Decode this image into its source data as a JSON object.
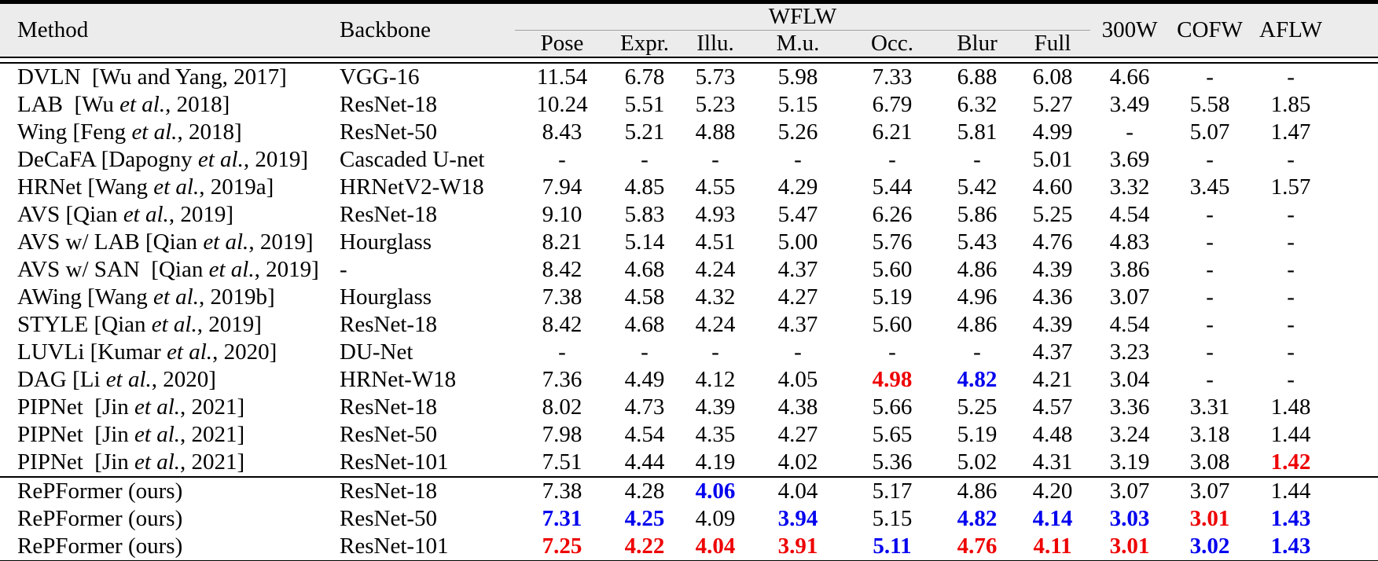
{
  "header": {
    "method": "Method",
    "backbone": "Backbone",
    "wflw_group": "WFLW",
    "wflw_subcols": [
      "Pose",
      "Expr.",
      "Illu.",
      "M.u.",
      "Occ.",
      "Blur",
      "Full"
    ],
    "datasets": [
      "300W",
      "COFW",
      "AFLW"
    ]
  },
  "colors": {
    "red": "#ee0000",
    "blue": "#0000ee",
    "header_bg": "#ececec",
    "wflw_rule": "#a3a3a3"
  },
  "rows": [
    {
      "method": [
        "DVLN  [Wu and Yang, 2017]",
        "",
        ""
      ],
      "backbone": "VGG-16",
      "sep": false,
      "cells": [
        [
          "11.54"
        ],
        [
          "6.78"
        ],
        [
          "5.73"
        ],
        [
          "5.98"
        ],
        [
          "7.33"
        ],
        [
          "6.88"
        ],
        [
          "6.08"
        ],
        [
          "4.66"
        ],
        [
          "-"
        ],
        [
          "-"
        ]
      ]
    },
    {
      "method": [
        "LAB  [Wu ",
        "et al.",
        ", 2018]"
      ],
      "backbone": "ResNet-18",
      "sep": false,
      "cells": [
        [
          "10.24"
        ],
        [
          "5.51"
        ],
        [
          "5.23"
        ],
        [
          "5.15"
        ],
        [
          "6.79"
        ],
        [
          "6.32"
        ],
        [
          "5.27"
        ],
        [
          "3.49"
        ],
        [
          "5.58"
        ],
        [
          "1.85"
        ]
      ]
    },
    {
      "method": [
        "Wing [Feng ",
        "et al.",
        ", 2018]"
      ],
      "backbone": "ResNet-50",
      "sep": false,
      "cells": [
        [
          "8.43"
        ],
        [
          "5.21"
        ],
        [
          "4.88"
        ],
        [
          "5.26"
        ],
        [
          "6.21"
        ],
        [
          "5.81"
        ],
        [
          "4.99"
        ],
        [
          "-"
        ],
        [
          "5.07"
        ],
        [
          "1.47"
        ]
      ]
    },
    {
      "method": [
        "DeCaFA [Dapogny ",
        "et al.",
        ", 2019]"
      ],
      "backbone": "Cascaded U-net",
      "sep": false,
      "cells": [
        [
          "-"
        ],
        [
          "-"
        ],
        [
          "-"
        ],
        [
          "-"
        ],
        [
          "-"
        ],
        [
          "-"
        ],
        [
          "5.01"
        ],
        [
          "3.69"
        ],
        [
          "-"
        ],
        [
          "-"
        ]
      ]
    },
    {
      "method": [
        "HRNet [Wang ",
        "et al.",
        ", 2019a]"
      ],
      "backbone": "HRNetV2-W18",
      "sep": false,
      "cells": [
        [
          "7.94"
        ],
        [
          "4.85"
        ],
        [
          "4.55"
        ],
        [
          "4.29"
        ],
        [
          "5.44"
        ],
        [
          "5.42"
        ],
        [
          "4.60"
        ],
        [
          "3.32"
        ],
        [
          "3.45"
        ],
        [
          "1.57"
        ]
      ]
    },
    {
      "method": [
        "AVS [Qian ",
        "et al.",
        ", 2019]"
      ],
      "backbone": "ResNet-18",
      "sep": false,
      "cells": [
        [
          "9.10"
        ],
        [
          "5.83"
        ],
        [
          "4.93"
        ],
        [
          "5.47"
        ],
        [
          "6.26"
        ],
        [
          "5.86"
        ],
        [
          "5.25"
        ],
        [
          "4.54"
        ],
        [
          "-"
        ],
        [
          "-"
        ]
      ]
    },
    {
      "method": [
        "AVS w/ LAB [Qian ",
        "et al.",
        ", 2019]"
      ],
      "backbone": "Hourglass",
      "sep": false,
      "cells": [
        [
          "8.21"
        ],
        [
          "5.14"
        ],
        [
          "4.51"
        ],
        [
          "5.00"
        ],
        [
          "5.76"
        ],
        [
          "5.43"
        ],
        [
          "4.76"
        ],
        [
          "4.83"
        ],
        [
          "-"
        ],
        [
          "-"
        ]
      ]
    },
    {
      "method": [
        "AVS w/ SAN  [Qian ",
        "et al.",
        ", 2019]"
      ],
      "backbone": "-",
      "sep": false,
      "cells": [
        [
          "8.42"
        ],
        [
          "4.68"
        ],
        [
          "4.24"
        ],
        [
          "4.37"
        ],
        [
          "5.60"
        ],
        [
          "4.86"
        ],
        [
          "4.39"
        ],
        [
          "3.86"
        ],
        [
          "-"
        ],
        [
          "-"
        ]
      ]
    },
    {
      "method": [
        "AWing [Wang ",
        "et al.",
        ", 2019b]"
      ],
      "backbone": "Hourglass",
      "sep": false,
      "cells": [
        [
          "7.38"
        ],
        [
          "4.58"
        ],
        [
          "4.32"
        ],
        [
          "4.27"
        ],
        [
          "5.19"
        ],
        [
          "4.96"
        ],
        [
          "4.36"
        ],
        [
          "3.07"
        ],
        [
          "-"
        ],
        [
          "-"
        ]
      ]
    },
    {
      "method": [
        "STYLE [Qian ",
        "et al.",
        ", 2019]"
      ],
      "backbone": "ResNet-18",
      "sep": false,
      "cells": [
        [
          "8.42"
        ],
        [
          "4.68"
        ],
        [
          "4.24"
        ],
        [
          "4.37"
        ],
        [
          "5.60"
        ],
        [
          "4.86"
        ],
        [
          "4.39"
        ],
        [
          "4.54"
        ],
        [
          "-"
        ],
        [
          "-"
        ]
      ]
    },
    {
      "method": [
        "LUVLi [Kumar ",
        "et al.",
        ", 2020]"
      ],
      "backbone": "DU-Net",
      "sep": false,
      "cells": [
        [
          "-"
        ],
        [
          "-"
        ],
        [
          "-"
        ],
        [
          "-"
        ],
        [
          "-"
        ],
        [
          "-"
        ],
        [
          "4.37"
        ],
        [
          "3.23"
        ],
        [
          "-"
        ],
        [
          "-"
        ]
      ]
    },
    {
      "method": [
        "DAG [Li ",
        "et al.",
        ", 2020]"
      ],
      "backbone": "HRNet-W18",
      "sep": false,
      "cells": [
        [
          "7.36"
        ],
        [
          "4.49"
        ],
        [
          "4.12"
        ],
        [
          "4.05"
        ],
        [
          "4.98",
          "red"
        ],
        [
          "4.82",
          "blue"
        ],
        [
          "4.21"
        ],
        [
          "3.04"
        ],
        [
          "-"
        ],
        [
          "-"
        ]
      ]
    },
    {
      "method": [
        "PIPNet  [Jin ",
        "et al.",
        ", 2021]"
      ],
      "backbone": "ResNet-18",
      "sep": false,
      "cells": [
        [
          "8.02"
        ],
        [
          "4.73"
        ],
        [
          "4.39"
        ],
        [
          "4.38"
        ],
        [
          "5.66"
        ],
        [
          "5.25"
        ],
        [
          "4.57"
        ],
        [
          "3.36"
        ],
        [
          "3.31"
        ],
        [
          "1.48"
        ]
      ]
    },
    {
      "method": [
        "PIPNet  [Jin ",
        "et al.",
        ", 2021]"
      ],
      "backbone": "ResNet-50",
      "sep": false,
      "cells": [
        [
          "7.98"
        ],
        [
          "4.54"
        ],
        [
          "4.35"
        ],
        [
          "4.27"
        ],
        [
          "5.65"
        ],
        [
          "5.19"
        ],
        [
          "4.48"
        ],
        [
          "3.24"
        ],
        [
          "3.18"
        ],
        [
          "1.44"
        ]
      ]
    },
    {
      "method": [
        "PIPNet  [Jin ",
        "et al.",
        ", 2021]"
      ],
      "backbone": "ResNet-101",
      "sep": false,
      "cells": [
        [
          "7.51"
        ],
        [
          "4.44"
        ],
        [
          "4.19"
        ],
        [
          "4.02"
        ],
        [
          "5.36"
        ],
        [
          "5.02"
        ],
        [
          "4.31"
        ],
        [
          "3.19"
        ],
        [
          "3.08"
        ],
        [
          "1.42",
          "red"
        ]
      ]
    },
    {
      "method": [
        "RePFormer (ours)",
        "",
        ""
      ],
      "backbone": "ResNet-18",
      "sep": true,
      "cells": [
        [
          "7.38"
        ],
        [
          "4.28"
        ],
        [
          "4.06",
          "blue"
        ],
        [
          "4.04"
        ],
        [
          "5.17"
        ],
        [
          "4.86"
        ],
        [
          "4.20"
        ],
        [
          "3.07"
        ],
        [
          "3.07"
        ],
        [
          "1.44"
        ]
      ]
    },
    {
      "method": [
        "RePFormer (ours)",
        "",
        ""
      ],
      "backbone": "ResNet-50",
      "sep": false,
      "cells": [
        [
          "7.31",
          "blue"
        ],
        [
          "4.25",
          "blue"
        ],
        [
          "4.09"
        ],
        [
          "3.94",
          "blue"
        ],
        [
          "5.15"
        ],
        [
          "4.82",
          "blue"
        ],
        [
          "4.14",
          "blue"
        ],
        [
          "3.03",
          "blue"
        ],
        [
          "3.01",
          "red"
        ],
        [
          "1.43",
          "blue"
        ]
      ]
    },
    {
      "method": [
        "RePFormer (ours)",
        "",
        ""
      ],
      "backbone": "ResNet-101",
      "sep": false,
      "cells": [
        [
          "7.25",
          "red"
        ],
        [
          "4.22",
          "red"
        ],
        [
          "4.04",
          "red"
        ],
        [
          "3.91",
          "red"
        ],
        [
          "5.11",
          "blue"
        ],
        [
          "4.76",
          "red"
        ],
        [
          "4.11",
          "red"
        ],
        [
          "3.01",
          "red"
        ],
        [
          "3.02",
          "blue"
        ],
        [
          "1.43",
          "blue"
        ]
      ]
    }
  ]
}
